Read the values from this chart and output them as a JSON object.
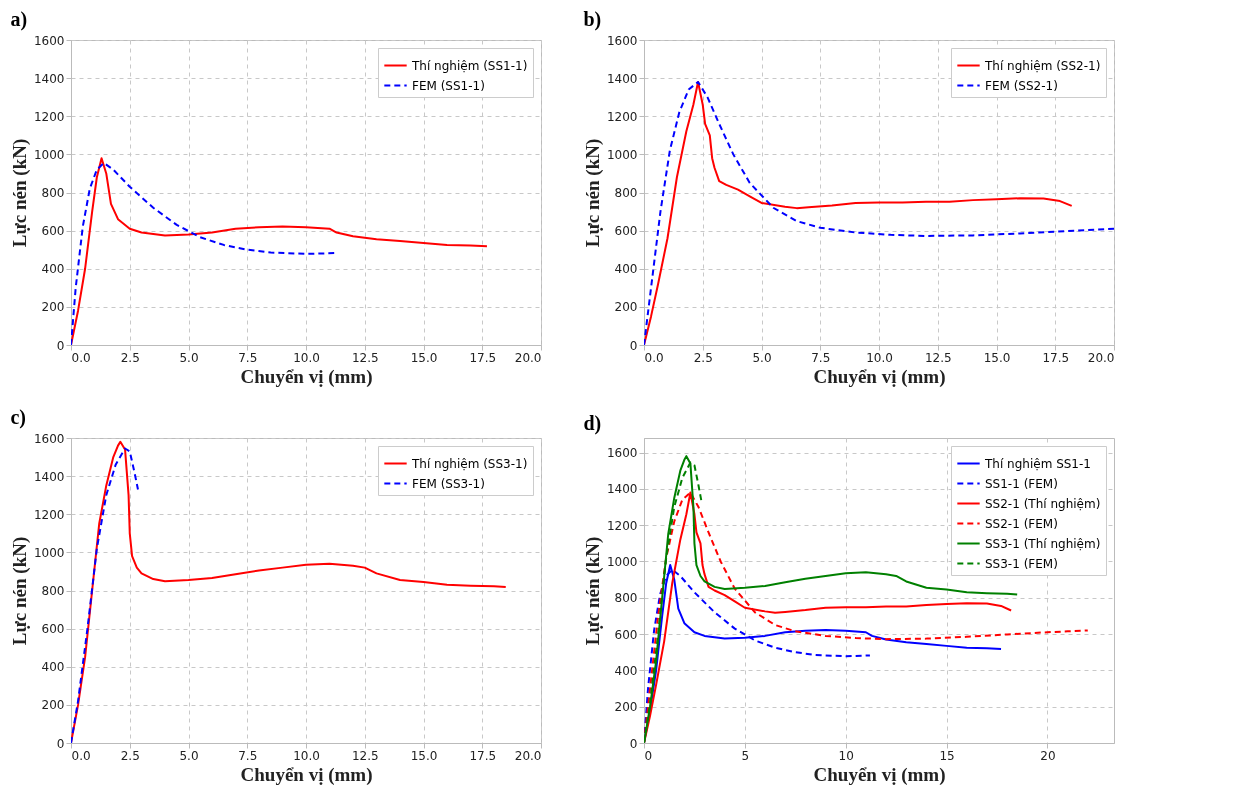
{
  "chart_data": [
    {
      "type": "line",
      "title": "a)",
      "xlabel": "Chuyển vị (mm)",
      "ylabel": "Lực nén (kN)",
      "xlim": [
        0,
        20
      ],
      "xticks": [
        {
          "value": 0,
          "label": "0.0"
        },
        2.5,
        {
          "value": 5,
          "label": "5.0"
        },
        {
          "value": 7.5,
          "label": "7.5"
        },
        {
          "value": 10,
          "label": "10.0"
        },
        12.5,
        {
          "value": 15,
          "label": "15.0"
        },
        17.5,
        {
          "value": 20,
          "label": "20.0"
        }
      ],
      "ylim": [
        0,
        1600
      ],
      "yticks": [
        0,
        200,
        400,
        600,
        800,
        1000,
        1200,
        1400,
        1600
      ],
      "grid": true,
      "legend": "top right",
      "series": [
        {
          "name": "Thí nghiệm (SS1-1)",
          "color": "#ff0000",
          "line_style": "solid",
          "x": [
            0,
            0.3,
            0.6,
            0.9,
            1.1,
            1.3,
            1.5,
            1.7,
            2,
            2.5,
            3,
            4,
            5,
            6,
            7,
            8,
            9,
            10,
            11,
            11.3,
            12,
            13,
            14,
            15,
            16,
            17,
            17.7
          ],
          "values": [
            0,
            180,
            400,
            700,
            880,
            980,
            900,
            740,
            660,
            610,
            590,
            575,
            580,
            590,
            610,
            618,
            622,
            618,
            610,
            590,
            570,
            555,
            545,
            535,
            525,
            522,
            518
          ]
        },
        {
          "name": "FEM (SS1-1)",
          "color": "#0000ff",
          "line_style": "dashed",
          "x": [
            0,
            0.2,
            0.5,
            0.8,
            1.1,
            1.4,
            1.8,
            2.5,
            3.5,
            4.5,
            5.5,
            6.5,
            7.5,
            8.5,
            10,
            11.2
          ],
          "values": [
            0,
            300,
            620,
            820,
            920,
            955,
            920,
            830,
            720,
            630,
            565,
            525,
            500,
            485,
            478,
            482
          ]
        }
      ]
    },
    {
      "type": "line",
      "title": "b)",
      "xlabel": "Chuyển vị (mm)",
      "ylabel": "Lực nén (kN)",
      "xlim": [
        0,
        20
      ],
      "xticks": [
        {
          "value": 0,
          "label": "0.0"
        },
        2.5,
        {
          "value": 5,
          "label": "5.0"
        },
        {
          "value": 7.5,
          "label": "7.5"
        },
        {
          "value": 10,
          "label": "10.0"
        },
        12.5,
        {
          "value": 15,
          "label": "15.0"
        },
        17.5,
        {
          "value": 20,
          "label": "20.0"
        }
      ],
      "ylim": [
        0,
        1600
      ],
      "yticks": [
        0,
        200,
        400,
        600,
        800,
        1000,
        1200,
        1400,
        1600
      ],
      "grid": true,
      "legend": "top right",
      "series": [
        {
          "name": "Thí nghiệm (SS2-1)",
          "color": "#ff0000",
          "line_style": "solid",
          "x": [
            0,
            0.3,
            0.6,
            1,
            1.4,
            1.8,
            2.1,
            2.3,
            2.5,
            2.6,
            2.8,
            2.9,
            3,
            3.2,
            3.5,
            4,
            4.5,
            5,
            6,
            6.5,
            7,
            8,
            9,
            10,
            11,
            12,
            13,
            14,
            15,
            16,
            17,
            17.7,
            18.2
          ],
          "values": [
            0,
            150,
            320,
            560,
            880,
            1120,
            1260,
            1380,
            1260,
            1160,
            1100,
            980,
            930,
            860,
            840,
            815,
            780,
            745,
            725,
            718,
            722,
            732,
            745,
            748,
            748,
            752,
            752,
            760,
            765,
            770,
            768,
            755,
            730
          ]
        },
        {
          "name": "FEM (SS2-1)",
          "color": "#0000ff",
          "line_style": "dashed",
          "x": [
            0,
            0.3,
            0.7,
            1.1,
            1.5,
            1.9,
            2.3,
            2.7,
            3.2,
            3.8,
            4.5,
            5.5,
            6.5,
            7.5,
            9,
            10.5,
            12,
            14,
            16,
            18,
            20
          ],
          "values": [
            0,
            300,
            700,
            1020,
            1220,
            1340,
            1380,
            1300,
            1160,
            1000,
            850,
            720,
            650,
            615,
            590,
            578,
            572,
            575,
            585,
            598,
            610
          ]
        }
      ]
    },
    {
      "type": "line",
      "title": "c)",
      "xlabel": "Chuyển vị (mm)",
      "ylabel": "Lực nén (kN)",
      "xlim": [
        0,
        20
      ],
      "xticks": [
        {
          "value": 0,
          "label": "0.0"
        },
        2.5,
        {
          "value": 5,
          "label": "5.0"
        },
        {
          "value": 7.5,
          "label": "7.5"
        },
        {
          "value": 10,
          "label": "10.0"
        },
        12.5,
        {
          "value": 15,
          "label": "15.0"
        },
        17.5,
        {
          "value": 20,
          "label": "20.0"
        }
      ],
      "ylim": [
        0,
        1600
      ],
      "yticks": [
        0,
        200,
        400,
        600,
        800,
        1000,
        1200,
        1400,
        1600
      ],
      "grid": true,
      "legend": "top right",
      "series": [
        {
          "name": "Thí nghiệm (SS3-1)",
          "color": "#ff0000",
          "line_style": "solid",
          "x": [
            0,
            0.3,
            0.6,
            0.9,
            1.2,
            1.5,
            1.8,
            2,
            2.1,
            2.3,
            2.45,
            2.5,
            2.6,
            2.8,
            3,
            3.5,
            4,
            5,
            6,
            7,
            8,
            9,
            10,
            11,
            12,
            12.5,
            13,
            14,
            15,
            16,
            17,
            18,
            18.5
          ],
          "values": [
            0,
            200,
            450,
            800,
            1150,
            1350,
            1500,
            1560,
            1580,
            1540,
            1300,
            1100,
            980,
            920,
            890,
            860,
            848,
            855,
            865,
            885,
            905,
            920,
            935,
            940,
            930,
            920,
            890,
            855,
            845,
            830,
            825,
            822,
            818
          ]
        },
        {
          "name": "FEM (SS3-1)",
          "color": "#0000ff",
          "line_style": "dashed",
          "x": [
            0,
            0.3,
            0.7,
            1.1,
            1.5,
            1.9,
            2.3,
            2.5,
            2.7,
            2.85
          ],
          "values": [
            0,
            220,
            600,
            1020,
            1300,
            1460,
            1545,
            1530,
            1420,
            1330
          ]
        }
      ]
    },
    {
      "type": "line",
      "title": "d)",
      "xlabel": "Chuyển vị (mm)",
      "ylabel": "Lực nén (kN)",
      "xlim": [
        0,
        23.3
      ],
      "xticks": [
        0,
        5,
        10,
        15,
        20
      ],
      "ylim": [
        0,
        1680
      ],
      "yticks": [
        0,
        200,
        400,
        600,
        800,
        1000,
        1200,
        1400,
        1600
      ],
      "grid": true,
      "legend": "top right",
      "series": [
        {
          "name": "Thí nghiệm SS1-1",
          "color": "#0000ff",
          "line_style": "solid",
          "x": [
            0,
            0.3,
            0.6,
            0.9,
            1.1,
            1.3,
            1.5,
            1.7,
            2,
            2.5,
            3,
            4,
            5,
            6,
            7,
            8,
            9,
            10,
            11,
            11.3,
            12,
            13,
            14,
            15,
            16,
            17,
            17.7
          ],
          "values": [
            0,
            180,
            400,
            700,
            880,
            980,
            900,
            740,
            660,
            610,
            590,
            575,
            580,
            590,
            610,
            618,
            622,
            618,
            610,
            590,
            570,
            555,
            545,
            535,
            525,
            522,
            518
          ]
        },
        {
          "name": "SS1-1 (FEM)",
          "color": "#0000ff",
          "line_style": "dashed",
          "x": [
            0,
            0.2,
            0.5,
            0.8,
            1.1,
            1.4,
            1.8,
            2.5,
            3.5,
            4.5,
            5.5,
            6.5,
            7.5,
            8.5,
            10,
            11.2
          ],
          "values": [
            0,
            300,
            620,
            820,
            920,
            955,
            920,
            830,
            720,
            630,
            565,
            525,
            500,
            485,
            478,
            482
          ]
        },
        {
          "name": "SS2-1 (Thí nghiệm)",
          "color": "#ff0000",
          "line_style": "solid",
          "x": [
            0,
            0.3,
            0.6,
            1,
            1.4,
            1.8,
            2.1,
            2.3,
            2.5,
            2.6,
            2.8,
            2.9,
            3,
            3.2,
            3.5,
            4,
            4.5,
            5,
            6,
            6.5,
            7,
            8,
            9,
            10,
            11,
            12,
            13,
            14,
            15,
            16,
            17,
            17.7,
            18.2
          ],
          "values": [
            0,
            150,
            320,
            560,
            880,
            1120,
            1260,
            1380,
            1260,
            1160,
            1100,
            980,
            930,
            860,
            840,
            815,
            780,
            745,
            725,
            718,
            722,
            732,
            745,
            748,
            748,
            752,
            752,
            760,
            765,
            770,
            768,
            755,
            730
          ]
        },
        {
          "name": "SS2-1 (FEM)",
          "color": "#ff0000",
          "line_style": "dashed",
          "x": [
            0,
            0.3,
            0.7,
            1.1,
            1.5,
            1.9,
            2.3,
            2.7,
            3.2,
            3.8,
            4.5,
            5.5,
            6.5,
            7.5,
            9,
            10.5,
            12,
            14,
            16,
            18,
            20,
            21,
            22
          ],
          "values": [
            0,
            300,
            700,
            1020,
            1220,
            1340,
            1380,
            1300,
            1160,
            1000,
            850,
            720,
            650,
            615,
            590,
            578,
            572,
            575,
            585,
            598,
            610,
            615,
            620
          ]
        },
        {
          "name": "SS3-1 (Thí nghiệm)",
          "color": "#008000",
          "line_style": "solid",
          "x": [
            0,
            0.3,
            0.6,
            0.9,
            1.2,
            1.5,
            1.8,
            2,
            2.1,
            2.3,
            2.45,
            2.5,
            2.6,
            2.8,
            3,
            3.5,
            4,
            5,
            6,
            7,
            8,
            9,
            10,
            11,
            12,
            12.5,
            13,
            14,
            15,
            16,
            17,
            18,
            18.5
          ],
          "values": [
            0,
            200,
            450,
            800,
            1150,
            1350,
            1500,
            1560,
            1580,
            1540,
            1300,
            1100,
            980,
            920,
            890,
            860,
            848,
            855,
            865,
            885,
            905,
            920,
            935,
            940,
            930,
            920,
            890,
            855,
            845,
            830,
            825,
            822,
            818
          ]
        },
        {
          "name": "SS3-1 (FEM)",
          "color": "#008000",
          "line_style": "dashed",
          "x": [
            0,
            0.3,
            0.7,
            1.1,
            1.5,
            1.9,
            2.3,
            2.5,
            2.7,
            2.85
          ],
          "values": [
            0,
            220,
            600,
            1020,
            1300,
            1460,
            1545,
            1530,
            1420,
            1330
          ]
        }
      ]
    }
  ]
}
